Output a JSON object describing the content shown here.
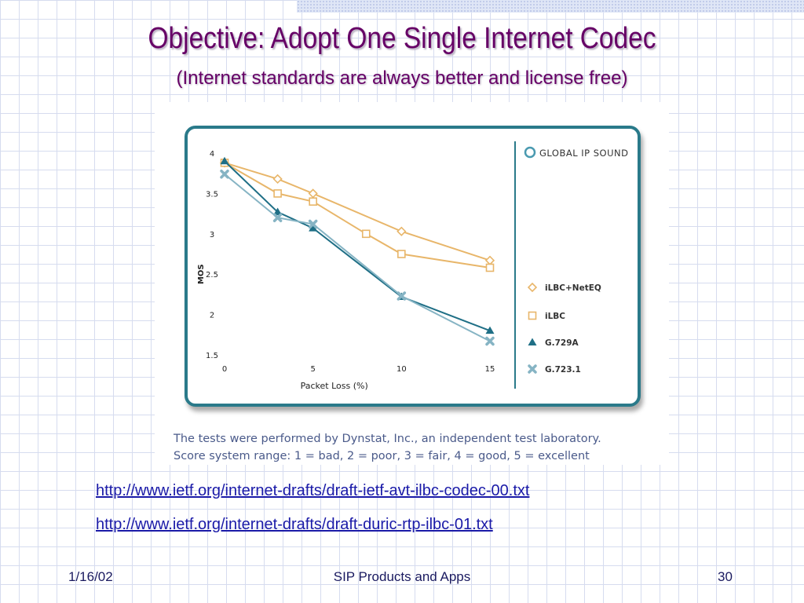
{
  "slide": {
    "title": "Objective: Adopt One Single Internet Codec",
    "subtitle": "(Internet standards are always better and license free)",
    "caption_line1": "The tests were performed by Dynstat, Inc., an independent test laboratory.",
    "caption_line2": "Score system range: 1 = bad, 2 = poor, 3 = fair, 4 = good, 5 = excellent",
    "links": [
      "http://www.ietf.org/internet-drafts/draft-ietf-avt-ilbc-codec-00.txt",
      "http://www.ietf.org/internet-drafts/draft-duric-rtp-ilbc-01.txt"
    ],
    "footer_date": "1/16/02",
    "footer_center": "SIP Products and Apps",
    "footer_page": "30"
  },
  "chart_data": {
    "type": "line",
    "logo_text": "GLOBAL IP SOUND",
    "xlabel": "Packet Loss (%)",
    "ylabel": "MOS",
    "xlim": [
      0,
      15
    ],
    "ylim": [
      1.5,
      4
    ],
    "x_ticks": [
      0,
      5,
      10,
      15
    ],
    "y_ticks": [
      1.5,
      2,
      2.5,
      3,
      3.5,
      4
    ],
    "y_tick_labels": [
      "1.5",
      "2",
      "2.5",
      "3",
      "3.5",
      "4"
    ],
    "grid": false,
    "legend_position": "right",
    "series": [
      {
        "name": "iLBC+NetEQ",
        "color": "#e8b66a",
        "marker": "diamond",
        "x": [
          0,
          3,
          5,
          10,
          15
        ],
        "y": [
          3.88,
          3.68,
          3.5,
          3.03,
          2.67
        ]
      },
      {
        "name": "iLBC",
        "color": "#e8b66a",
        "marker": "square",
        "x": [
          0,
          3,
          5,
          8,
          10,
          15
        ],
        "y": [
          3.88,
          3.5,
          3.4,
          3.0,
          2.75,
          2.58
        ]
      },
      {
        "name": "G.729A",
        "color": "#1f6f86",
        "marker": "triangle",
        "x": [
          0,
          3,
          5,
          10,
          15
        ],
        "y": [
          3.9,
          3.27,
          3.07,
          2.22,
          1.8
        ]
      },
      {
        "name": "G.723.1",
        "color": "#86b4c4",
        "marker": "cross",
        "x": [
          0,
          3,
          5,
          10,
          15
        ],
        "y": [
          3.74,
          3.2,
          3.12,
          2.23,
          1.67
        ]
      }
    ]
  }
}
